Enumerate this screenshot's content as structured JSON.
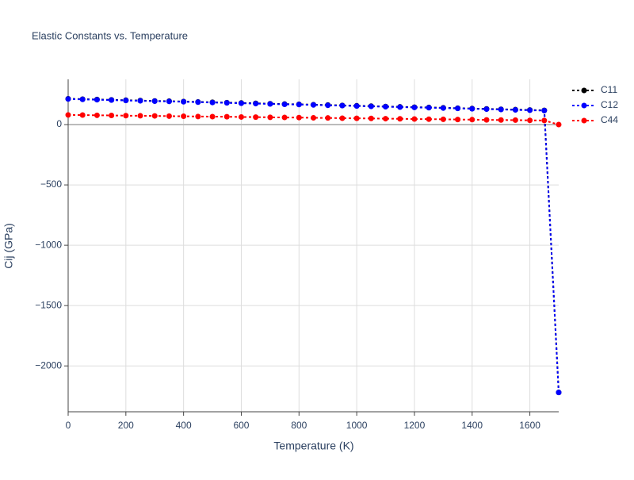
{
  "chart_data": {
    "type": "line",
    "title": "Elastic Constants vs. Temperature",
    "x_label": "Temperature (K)",
    "y_label": "Cij (GPa)",
    "x": [
      0,
      50,
      100,
      150,
      200,
      250,
      300,
      350,
      400,
      450,
      500,
      550,
      600,
      650,
      700,
      750,
      800,
      850,
      900,
      950,
      1000,
      1050,
      1100,
      1150,
      1200,
      1250,
      1300,
      1350,
      1400,
      1450,
      1500,
      1550,
      1600,
      1650,
      1700
    ],
    "series": [
      {
        "name": "C11",
        "color": "#000000",
        "values": [
          214,
          211,
          208,
          205,
          202,
          199,
          196,
          194,
          191,
          188,
          185,
          182,
          179,
          176,
          173,
          170,
          168,
          165,
          162,
          159,
          156,
          153,
          150,
          147,
          144,
          142,
          139,
          136,
          133,
          130,
          127,
          124,
          121,
          118,
          -2220
        ]
      },
      {
        "name": "C12",
        "color": "#0000ff",
        "values": [
          212,
          209,
          206,
          203,
          200,
          197,
          194,
          192,
          189,
          186,
          183,
          180,
          177,
          174,
          171,
          168,
          166,
          163,
          160,
          157,
          154,
          151,
          148,
          145,
          142,
          140,
          137,
          134,
          131,
          128,
          125,
          122,
          119,
          116,
          -2220
        ]
      },
      {
        "name": "C44",
        "color": "#ff0000",
        "values": [
          80,
          79,
          77,
          76,
          74,
          73,
          72,
          70,
          69,
          67,
          66,
          65,
          63,
          62,
          60,
          59,
          58,
          56,
          55,
          53,
          52,
          51,
          49,
          48,
          46,
          45,
          44,
          42,
          41,
          39,
          38,
          37,
          35,
          34,
          0
        ]
      }
    ],
    "xlim": [
      0,
      1700
    ],
    "xticks": [
      0,
      200,
      400,
      600,
      800,
      1000,
      1200,
      1400,
      1600
    ],
    "ylim": [
      -2380,
      375
    ],
    "yticks": [
      {
        "value": -2000,
        "label": "−2000"
      },
      {
        "value": -1500,
        "label": "−1500"
      },
      {
        "value": -1000,
        "label": "−1000"
      },
      {
        "value": -500,
        "label": "−500"
      },
      0
    ],
    "grid": true,
    "legend": "right"
  }
}
